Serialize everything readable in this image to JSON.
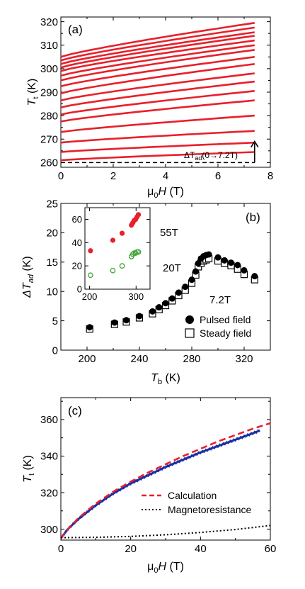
{
  "chart_data": [
    {
      "panel": "(a)",
      "type": "line",
      "xlabel": "μ0H (T)",
      "ylabel": "Tt (K)",
      "xlim": [
        0,
        8
      ],
      "ylim": [
        258,
        322
      ],
      "xticks": [
        "0",
        "2",
        "4",
        "6",
        "8"
      ],
      "yticks": [
        "260",
        "270",
        "280",
        "290",
        "300",
        "310",
        "320"
      ],
      "annotation": "ΔTad(0→7.2T)",
      "colors": {
        "curves": "#e8202a",
        "baseline": "#000000"
      },
      "series": [
        {
          "values": [
            [
              0,
              261.0
            ],
            [
              7.4,
              264.5
            ]
          ]
        },
        {
          "values": [
            [
              0,
              264.5
            ],
            [
              7.4,
              268.5
            ]
          ]
        },
        {
          "values": [
            [
              0,
              268.5
            ],
            [
              7.4,
              273.5
            ]
          ]
        },
        {
          "values": [
            [
              0,
              273.0
            ],
            [
              7.4,
              280.0
            ]
          ]
        },
        {
          "values": [
            [
              0,
              277.5
            ],
            [
              7.4,
              286.5
            ]
          ]
        },
        {
          "values": [
            [
              0,
              280.5
            ],
            [
              7.4,
              290.5
            ]
          ]
        },
        {
          "values": [
            [
              0,
              283.5
            ],
            [
              7.4,
              294.5
            ]
          ]
        },
        {
          "values": [
            [
              0,
              286.5
            ],
            [
              7.4,
              298.0
            ]
          ]
        },
        {
          "values": [
            [
              0,
              289.5
            ],
            [
              7.4,
              302.0
            ]
          ]
        },
        {
          "values": [
            [
              0,
              292.5
            ],
            [
              7.4,
              305.0
            ]
          ]
        },
        {
          "values": [
            [
              0,
              295.0
            ],
            [
              7.4,
              308.0
            ]
          ]
        },
        {
          "values": [
            [
              0,
              297.0
            ],
            [
              7.4,
              310.0
            ]
          ]
        },
        {
          "values": [
            [
              0,
              299.0
            ],
            [
              7.4,
              312.0
            ]
          ]
        },
        {
          "values": [
            [
              0,
              300.5
            ],
            [
              7.4,
              314.0
            ]
          ]
        },
        {
          "values": [
            [
              0,
              302.0
            ],
            [
              7.4,
              315.5
            ]
          ]
        },
        {
          "values": [
            [
              0,
              303.5
            ],
            [
              7.4,
              317.5
            ]
          ]
        },
        {
          "values": [
            [
              0,
              305.0
            ],
            [
              7.4,
              319.5
            ]
          ]
        }
      ],
      "baseline": [
        [
          0,
          260
        ],
        [
          7.4,
          260
        ]
      ]
    },
    {
      "panel": "(b)",
      "type": "scatter",
      "xlabel": "Tb (K)",
      "ylabel": "ΔTad (K)",
      "xlim": [
        180,
        340
      ],
      "ylim": [
        0,
        25
      ],
      "xticks": [
        "200",
        "240",
        "280",
        "320"
      ],
      "yticks": [
        "0",
        "5",
        "10",
        "15",
        "20",
        "25"
      ],
      "legend_title": "7.2T",
      "legend_position": "bottom-right",
      "series": [
        {
          "name": "Pulsed field",
          "marker": "filled-circle",
          "x": [
            202,
            221,
            230,
            240,
            250,
            255,
            260,
            265,
            270,
            275,
            280,
            283,
            285,
            287,
            289,
            291,
            293,
            300,
            305,
            310,
            315,
            320,
            328
          ],
          "y": [
            3.9,
            4.7,
            5.1,
            5.8,
            6.6,
            7.3,
            8.0,
            8.8,
            9.8,
            10.8,
            12.0,
            13.4,
            14.8,
            15.6,
            16.0,
            16.2,
            16.3,
            15.8,
            15.3,
            14.9,
            14.5,
            13.6,
            12.6
          ]
        },
        {
          "name": "Steady field",
          "marker": "open-square",
          "x": [
            202,
            221,
            230,
            240,
            250,
            255,
            260,
            265,
            270,
            275,
            280,
            283,
            285,
            287,
            289,
            291,
            293,
            300,
            305,
            310,
            315,
            320,
            328
          ],
          "y": [
            3.6,
            4.4,
            4.8,
            5.5,
            6.2,
            6.9,
            7.6,
            8.4,
            9.3,
            10.2,
            11.4,
            12.8,
            14.2,
            14.8,
            15.2,
            15.4,
            15.6,
            15.2,
            14.8,
            14.4,
            13.8,
            12.9,
            12.0
          ]
        }
      ],
      "inset": {
        "xlim": [
          190,
          330
        ],
        "ylim": [
          0,
          70
        ],
        "xticks": [
          "200",
          "300"
        ],
        "yticks": [
          "0",
          "20",
          "40",
          "60"
        ],
        "series": [
          {
            "name": "55T",
            "marker": "filled-circle",
            "color": "#e8202a",
            "x": [
              202,
              250,
              270,
              290,
              293,
              296,
              299,
              302,
              305
            ],
            "y": [
              33,
              42,
              48,
              55,
              57,
              59,
              60,
              62,
              64
            ]
          },
          {
            "name": "20T",
            "marker": "open-circle",
            "color": "#3fa535",
            "x": [
              202,
              250,
              270,
              290,
              293,
              296,
              299,
              302,
              305
            ],
            "y": [
              12,
              16,
              20,
              28,
              30,
              31,
              31,
              32,
              32
            ]
          }
        ]
      }
    },
    {
      "panel": "(c)",
      "type": "line",
      "xlabel": "μ0H (T)",
      "ylabel": "Tt (K)",
      "xlim": [
        0,
        60
      ],
      "ylim": [
        294,
        372
      ],
      "xticks": [
        "0",
        "20",
        "40",
        "60"
      ],
      "yticks": [
        "300",
        "320",
        "340",
        "360"
      ],
      "legend_position": "bottom-right",
      "series": [
        {
          "name": "Calculation",
          "style": "dashed",
          "color": "#e8202a",
          "x": [
            0,
            2,
            5,
            10,
            15,
            20,
            25,
            30,
            35,
            40,
            45,
            50,
            55,
            60
          ],
          "y": [
            295,
            300,
            306,
            314,
            320.5,
            326,
            331,
            335.5,
            340,
            344,
            348,
            351.5,
            355,
            358
          ]
        },
        {
          "name": "",
          "style": "solid",
          "color": "#1c2fa3",
          "x": [
            0,
            2,
            5,
            10,
            15,
            20,
            25,
            30,
            35,
            40,
            45,
            50,
            55,
            57
          ],
          "y": [
            295,
            300,
            305.5,
            313,
            319.5,
            325,
            329.5,
            334,
            338,
            342,
            345.5,
            349,
            352.5,
            354
          ]
        },
        {
          "name": "Magnetoresistance",
          "style": "dotted",
          "color": "#000000",
          "x": [
            0,
            10,
            20,
            30,
            40,
            50,
            60
          ],
          "y": [
            295.3,
            295.5,
            296.0,
            296.9,
            298.2,
            299.8,
            302.0
          ]
        }
      ]
    }
  ]
}
